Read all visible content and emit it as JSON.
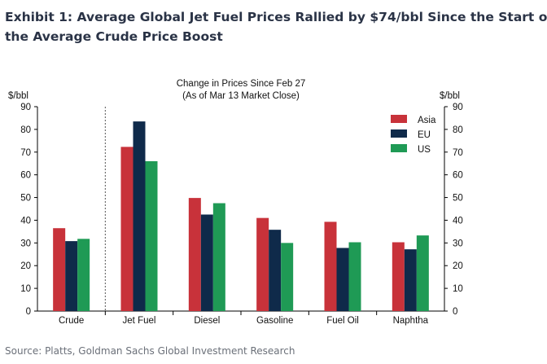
{
  "exhibit": {
    "title_line1": "Exhibit 1: Average Global Jet Fuel Prices Rallied by $74/bbl Since the Start o",
    "title_line2": "the Average Crude Price Boost"
  },
  "source": "Source: Platts, Goldman Sachs Global Investment Research",
  "chart_data": {
    "type": "bar",
    "title": "Change in Prices Since Feb 27",
    "subtitle": "(As of Mar 13 Market Close)",
    "ylabel_left": "$/bbl",
    "ylabel_right": "$/bbl",
    "ylim": [
      0,
      90
    ],
    "yticks": [
      0,
      10,
      20,
      30,
      40,
      50,
      60,
      70,
      80,
      90
    ],
    "categories": [
      "Crude",
      "Jet Fuel",
      "Diesel",
      "Gasoline",
      "Fuel Oil",
      "Naphtha"
    ],
    "series": [
      {
        "name": "Asia",
        "color": "#c8323a",
        "values": [
          36.5,
          72.3,
          49.8,
          41.0,
          39.3,
          30.3
        ]
      },
      {
        "name": "EU",
        "color": "#0f2a4a",
        "values": [
          30.8,
          83.5,
          42.5,
          35.8,
          27.8,
          27.2
        ]
      },
      {
        "name": "US",
        "color": "#1f9a55",
        "values": [
          31.8,
          66.0,
          47.5,
          30.0,
          30.3,
          33.3
        ]
      }
    ],
    "legend_position": "top-right",
    "grid": false,
    "separator_after_category": "Crude"
  }
}
